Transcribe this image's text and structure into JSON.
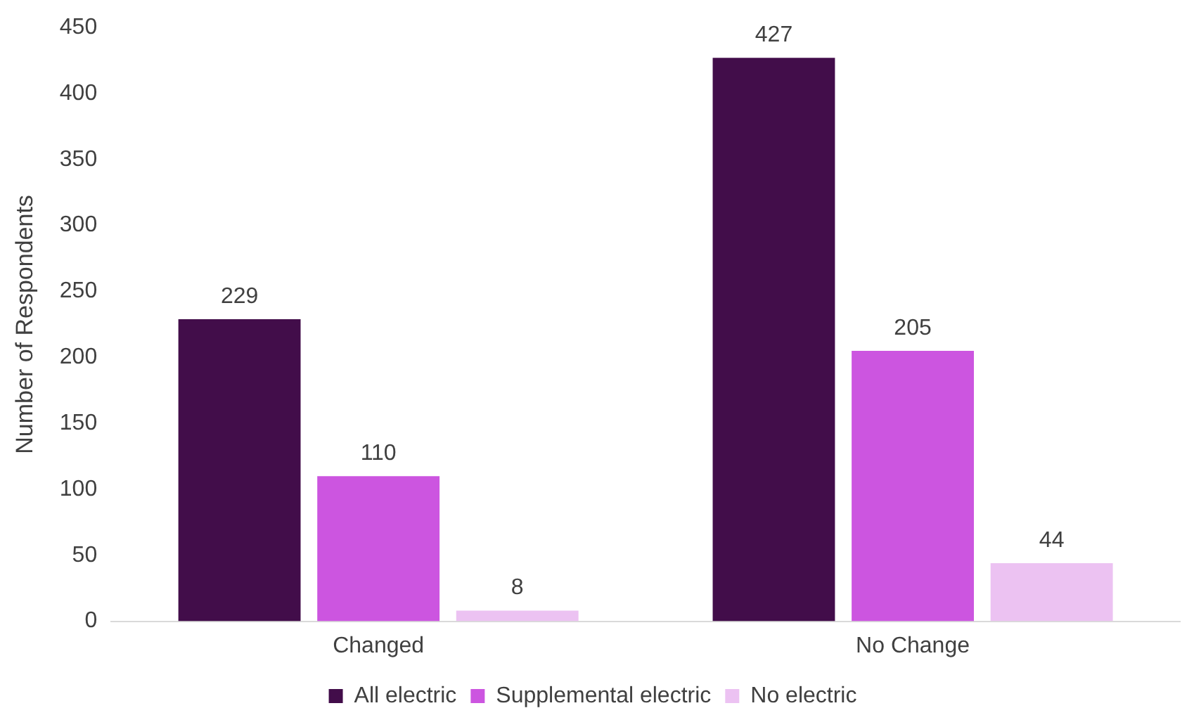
{
  "chart_data": {
    "type": "bar",
    "ylabel": "Number of Respondents",
    "categories": [
      "Changed",
      "No Change"
    ],
    "series": [
      {
        "name": "All electric",
        "color": "#420d4a",
        "values": [
          229,
          427
        ]
      },
      {
        "name": "Supplemental electric",
        "color": "#cc55e0",
        "values": [
          110,
          205
        ]
      },
      {
        "name": "No electric",
        "color": "#ecc2f2",
        "values": [
          8,
          44
        ]
      }
    ],
    "ylim": [
      0,
      450
    ],
    "yticks": [
      0,
      50,
      100,
      150,
      200,
      250,
      300,
      350,
      400,
      450
    ],
    "grid": false,
    "legend": "bottom",
    "data_labels": true
  }
}
